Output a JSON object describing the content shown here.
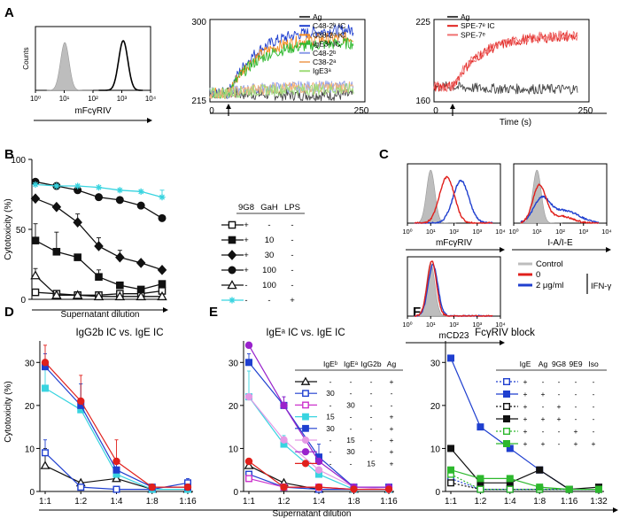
{
  "panel_labels": {
    "A": "A",
    "B": "B",
    "C": "C",
    "D": "D",
    "E": "E",
    "F": "F"
  },
  "colors": {
    "black": "#111111",
    "blue": "#1f3fcf",
    "red": "#e0201c",
    "green": "#2db82d",
    "orange": "#f58a1f",
    "lightblue": "#8b9be8",
    "lightorange": "#f2b27a",
    "lightgreen": "#9fdc7a",
    "cyan": "#39d4e0",
    "magenta": "#cc33cc",
    "violet": "#9922cc",
    "pink": "#e59ae5",
    "gray": "#bdbdbd"
  },
  "chart_data": [
    {
      "id": "A_hist",
      "type": "histogram",
      "ylabel": "Counts",
      "xlabel": "mFcγRIV",
      "x_scale": "log",
      "xlim": [
        1,
        10000
      ],
      "x_ticks": [
        {
          "v": 1,
          "label": "10⁰"
        },
        {
          "v": 10,
          "label": "10¹"
        },
        {
          "v": 100,
          "label": "10²"
        },
        {
          "v": 1000,
          "label": "10³"
        },
        {
          "v": 10000,
          "label": "10⁴"
        }
      ],
      "series": [
        {
          "name": "isotype control",
          "style": "filled-gray",
          "peak": 10
        },
        {
          "name": "mFcγRIV",
          "style": "black-line",
          "peak": 1000
        }
      ]
    },
    {
      "id": "A_kin1",
      "type": "line",
      "xlim": [
        0,
        250
      ],
      "ylim": [
        215,
        300
      ],
      "x_ticks": [
        "0",
        "250"
      ],
      "y_ticks": [
        "215",
        "300"
      ],
      "stimulus_time_s": 30,
      "legend": [
        "Ag",
        "C48-2ᵇ IC",
        "C38-2ᵃ IC",
        "IgE3ᵃ IC",
        "C48-2ᵇ",
        "C38-2ᵃ",
        "IgE3ᵃ"
      ],
      "series": [
        {
          "name": "Ag",
          "color": "#444444",
          "plateau": 222
        },
        {
          "name": "C48-2ᵇ IC",
          "color": "#1f3fcf",
          "plateau": 290
        },
        {
          "name": "C38-2ᵃ IC",
          "color": "#f58a1f",
          "plateau": 282
        },
        {
          "name": "IgE3ᵃ IC",
          "color": "#2db82d",
          "plateau": 276
        },
        {
          "name": "C48-2ᵇ",
          "color": "#8b9be8",
          "plateau": 231
        },
        {
          "name": "C38-2ᵃ",
          "color": "#f2b27a",
          "plateau": 230
        },
        {
          "name": "IgE3ᵃ",
          "color": "#9fdc7a",
          "plateau": 228
        }
      ]
    },
    {
      "id": "A_kin2",
      "type": "line",
      "xlim": [
        0,
        250
      ],
      "ylim": [
        160,
        225
      ],
      "x_ticks": [
        "0",
        "250"
      ],
      "y_ticks": [
        "160",
        "225"
      ],
      "xlabel": "Time (s)",
      "stimulus_time_s": 30,
      "legend": [
        "Ag",
        "SPE-7ᵉ IC",
        "SPE-7ᵉ"
      ],
      "series": [
        {
          "name": "Ag",
          "color": "#444444",
          "plateau": 170
        },
        {
          "name": "SPE-7ᵉ IC",
          "color": "#e0201c",
          "plateau": 212
        },
        {
          "name": "SPE-7ᵉ",
          "color": "#f07070",
          "plateau": 213
        }
      ]
    },
    {
      "id": "B",
      "type": "line",
      "ylabel": "Cytotoxicity (%)",
      "xlabel": "Supernatant dilution",
      "ylim": [
        0,
        100
      ],
      "y_ticks": [
        0,
        50,
        100
      ],
      "x": [
        1,
        2,
        3,
        4,
        5,
        6,
        7
      ],
      "table_header": [
        "9G8",
        "GaH",
        "LPS"
      ],
      "series": [
        {
          "name": "+ / - / -",
          "marker": "square-open",
          "color": "#111111",
          "values": [
            5,
            4,
            3,
            3,
            4,
            4,
            6
          ],
          "err": [
            2,
            0,
            0,
            0,
            0,
            0,
            0
          ],
          "row": [
            "+",
            "-",
            "-"
          ]
        },
        {
          "name": "+ / 10 / -",
          "marker": "square",
          "color": "#111111",
          "values": [
            42,
            34,
            30,
            16,
            10,
            7,
            11
          ],
          "err": [
            12,
            14,
            0,
            5,
            0,
            0,
            0
          ],
          "row": [
            "+",
            "10",
            "-"
          ]
        },
        {
          "name": "+ / 30 / -",
          "marker": "diamond",
          "color": "#111111",
          "values": [
            72,
            66,
            55,
            38,
            30,
            26,
            21
          ],
          "err": [
            0,
            0,
            6,
            6,
            5,
            0,
            0
          ],
          "row": [
            "+",
            "30",
            "-"
          ]
        },
        {
          "name": "+ / 100 / -",
          "marker": "circle",
          "color": "#111111",
          "values": [
            84,
            81,
            78,
            73,
            71,
            67,
            58
          ],
          "err": [
            0,
            0,
            0,
            0,
            0,
            0,
            0
          ],
          "row": [
            "+",
            "100",
            "-"
          ]
        },
        {
          "name": "- / 100 / -",
          "marker": "triangle-open",
          "color": "#111111",
          "values": [
            17,
            3,
            3,
            2,
            2,
            2,
            2
          ],
          "err": [
            5,
            0,
            0,
            0,
            0,
            0,
            0
          ],
          "row": [
            "-",
            "100",
            "-"
          ]
        },
        {
          "name": "- / - / +",
          "marker": "asterisk",
          "color": "#39d4e0",
          "values": [
            82,
            81,
            81,
            80,
            78,
            77,
            73
          ],
          "err": [
            0,
            0,
            0,
            0,
            0,
            0,
            5
          ],
          "row": [
            "-",
            "-",
            "+"
          ]
        }
      ]
    },
    {
      "id": "C_hist",
      "type": "histogram",
      "x_scale": "log",
      "xlim": [
        1,
        10000
      ],
      "subplots": [
        {
          "xlabel": "mFcγRIV"
        },
        {
          "xlabel": "I-A/I-E"
        },
        {
          "xlabel": "mCD23"
        }
      ],
      "legend": {
        "items": [
          "Control",
          "0",
          "2 μg/ml"
        ],
        "bracket_label": "IFN-γ"
      },
      "series_colors": [
        "#bdbdbd",
        "#e0201c",
        "#1f3fcf"
      ]
    },
    {
      "id": "D",
      "type": "line",
      "title": "IgG2b IC vs. IgE IC",
      "ylabel": "Cytotoxicity (%)",
      "ylim": [
        0,
        35
      ],
      "y_ticks": [
        0,
        10,
        20,
        30
      ],
      "categories": [
        "1:1",
        "1:2",
        "1:4",
        "1:8",
        "1:16"
      ],
      "series": [
        {
          "name": "black triangle",
          "marker": "triangle-open",
          "color": "#111111",
          "values": [
            6,
            2,
            3,
            0.5,
            0.5
          ]
        },
        {
          "name": "blue open square",
          "marker": "square-open",
          "color": "#1f3fcf",
          "values": [
            9,
            1,
            0.5,
            0.5,
            2
          ]
        },
        {
          "name": "cyan",
          "marker": "square",
          "color": "#39d4e0",
          "values": [
            24,
            19,
            4,
            0.5,
            0.5
          ]
        },
        {
          "name": "blue",
          "marker": "square",
          "color": "#1f3fcf",
          "values": [
            29,
            20,
            5,
            1,
            1
          ]
        },
        {
          "name": "red",
          "marker": "circle",
          "color": "#e0201c",
          "values": [
            30,
            21,
            7,
            1,
            1
          ]
        }
      ]
    },
    {
      "id": "E",
      "type": "line",
      "title": "IgEᵃ IC vs. IgE IC",
      "ylim": [
        0,
        35
      ],
      "y_ticks": [
        0,
        10,
        20,
        30
      ],
      "categories": [
        "1:1",
        "1:2",
        "1:4",
        "1:8",
        "1:16"
      ],
      "xlabel": "Supernatant dilution",
      "table_header": [
        "IgEᵇ",
        "IgEᵃ",
        "IgG2b",
        "Ag"
      ],
      "series": [
        {
          "marker": "triangle-open",
          "color": "#111111",
          "values": [
            6,
            2,
            0.5,
            0.5,
            0.5
          ],
          "row": [
            "-",
            "-",
            "-",
            "+"
          ]
        },
        {
          "marker": "square-open",
          "color": "#1f3fcf",
          "values": [
            4,
            1,
            0.5,
            0.5,
            0.5
          ],
          "row": [
            "30",
            "-",
            "-",
            "-"
          ]
        },
        {
          "marker": "square-open",
          "color": "#cc33cc",
          "values": [
            3,
            1,
            1,
            0.5,
            0.5
          ],
          "row": [
            "-",
            "30",
            "-",
            "-"
          ]
        },
        {
          "marker": "square",
          "color": "#39d4e0",
          "values": [
            22,
            11,
            4,
            0.5,
            0.5
          ],
          "row": [
            "15",
            "-",
            "-",
            "+"
          ]
        },
        {
          "marker": "square",
          "color": "#1f3fcf",
          "values": [
            30,
            20,
            8,
            1,
            1
          ],
          "row": [
            "30",
            "-",
            "-",
            "+"
          ]
        },
        {
          "marker": "circle",
          "color": "#e59ae5",
          "values": [
            22,
            12,
            5,
            1,
            0.5
          ],
          "row": [
            "-",
            "15",
            "-",
            "+"
          ]
        },
        {
          "marker": "circle",
          "color": "#9922cc",
          "values": [
            34,
            20,
            7,
            1,
            1
          ],
          "row": [
            "-",
            "30",
            "-",
            "+"
          ]
        },
        {
          "marker": "circle",
          "color": "#e0201c",
          "values": [
            7,
            1,
            1,
            0.5,
            0.5
          ],
          "row": [
            "-",
            "-",
            "15",
            "+"
          ]
        }
      ]
    },
    {
      "id": "F",
      "type": "line",
      "title": "FcγRIV block",
      "ylim": [
        0,
        35
      ],
      "y_ticks": [
        0,
        10,
        20,
        30
      ],
      "categories": [
        "1:1",
        "1:2",
        "1:4",
        "1:8",
        "1:16",
        "1:32"
      ],
      "table_header": [
        "IgE",
        "Ag",
        "9G8",
        "9E9",
        "Iso"
      ],
      "series": [
        {
          "marker": "square-open",
          "color": "#1f3fcf",
          "dashed": true,
          "values": [
            3,
            0.5,
            0.5,
            0.5,
            0.5,
            0.5
          ],
          "row": [
            "+",
            "-",
            "-",
            "-",
            "-"
          ]
        },
        {
          "marker": "square",
          "color": "#1f3fcf",
          "values": [
            31,
            15,
            10,
            5,
            0.5,
            0.5
          ],
          "row": [
            "+",
            "+",
            "-",
            "-",
            "-"
          ]
        },
        {
          "marker": "square-open",
          "color": "#111111",
          "dashed": true,
          "values": [
            2,
            0.5,
            0.5,
            0.5,
            0.5,
            0.5
          ],
          "row": [
            "+",
            "-",
            "+",
            "-",
            "-"
          ]
        },
        {
          "marker": "square",
          "color": "#111111",
          "values": [
            10,
            2,
            2,
            5,
            0.5,
            1
          ],
          "row": [
            "+",
            "+",
            "+",
            "-",
            "-"
          ]
        },
        {
          "marker": "square-open",
          "color": "#2db82d",
          "dashed": true,
          "values": [
            4,
            0.5,
            0.5,
            0.5,
            0.5,
            0.5
          ],
          "row": [
            "+",
            "-",
            "-",
            "+",
            "-"
          ]
        },
        {
          "marker": "square",
          "color": "#2db82d",
          "values": [
            5,
            3,
            3,
            1,
            0.5,
            0.5
          ],
          "row": [
            "+",
            "+",
            "-",
            "+",
            "+"
          ]
        }
      ]
    }
  ]
}
